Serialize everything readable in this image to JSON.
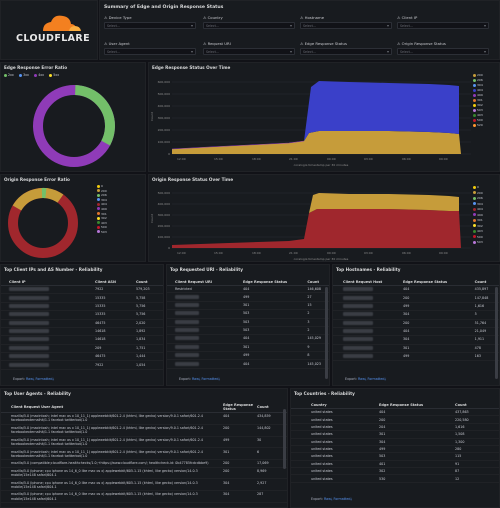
{
  "header": {
    "logo_text": "CLOUDFLARE",
    "title": "Summary of Edge and Origin Response Status",
    "filters": [
      {
        "label": "Device Type",
        "placeholder": "Select..."
      },
      {
        "label": "Country",
        "placeholder": "Select..."
      },
      {
        "label": "Hostname",
        "placeholder": "Select..."
      },
      {
        "label": "Client IP",
        "placeholder": "Select..."
      },
      {
        "label": "User Agent",
        "placeholder": "Select..."
      },
      {
        "label": "Request URI",
        "placeholder": "Select..."
      },
      {
        "label": "Edge Response Status",
        "placeholder": "Select..."
      },
      {
        "label": "Origin Response Status",
        "placeholder": "Select..."
      }
    ]
  },
  "edge_ratio": {
    "title": "Edge Response Error Ratio",
    "legend": [
      {
        "name": "2xx",
        "color": "#73bf69"
      },
      {
        "name": "3xx",
        "color": "#5794f2"
      },
      {
        "name": "4xx",
        "color": "#8f3bb8"
      },
      {
        "name": "5xx",
        "color": "#fade2a"
      }
    ]
  },
  "edge_time": {
    "title": "Edge Response Status Over Time",
    "xlabel": "coralogix.timestamp per 30 minutes",
    "ylabel": "Count",
    "yticks": [
      "0",
      "100,000",
      "200,000",
      "300,000",
      "400,000",
      "500,000",
      "600,000"
    ],
    "xticks": [
      "12:00",
      "15:00",
      "18:00",
      "21:00",
      "00:00",
      "03:00",
      "06:00",
      "09:00"
    ],
    "legend": [
      {
        "name": "200",
        "color": "#c69c3a"
      },
      {
        "name": "206",
        "color": "#73bf69"
      },
      {
        "name": "304",
        "color": "#5794f2"
      },
      {
        "name": "404",
        "color": "#3a40c9"
      },
      {
        "name": "499",
        "color": "#8f3bb8"
      },
      {
        "name": "301",
        "color": "#e0752d"
      },
      {
        "name": "302",
        "color": "#f2cc0c"
      },
      {
        "name": "503",
        "color": "#b877d9"
      },
      {
        "name": "403",
        "color": "#37872d"
      },
      {
        "name": "500",
        "color": "#c4162a"
      },
      {
        "name": "520",
        "color": "#ff9830"
      }
    ]
  },
  "origin_ratio": {
    "title": "Origin Response Error Ratio",
    "legend": [
      {
        "name": "0",
        "color": "#f2cc0c"
      },
      {
        "name": "200",
        "color": "#c69c3a"
      },
      {
        "name": "206",
        "color": "#73bf69"
      },
      {
        "name": "304",
        "color": "#5794f2"
      },
      {
        "name": "404",
        "color": "#a0272d"
      },
      {
        "name": "499",
        "color": "#8f3bb8"
      },
      {
        "name": "301",
        "color": "#e0752d"
      },
      {
        "name": "302",
        "color": "#fade2a"
      },
      {
        "name": "403",
        "color": "#37872d"
      },
      {
        "name": "500",
        "color": "#c4162a"
      },
      {
        "name": "503",
        "color": "#b877d9"
      }
    ]
  },
  "origin_time": {
    "title": "Origin Response Status Over Time",
    "xlabel": "coralogix.timestamp per 30 minutes",
    "ylabel": "Count",
    "yticks": [
      "0",
      "100,000",
      "200,000",
      "300,000",
      "400,000",
      "500,000"
    ],
    "xticks": [
      "12:00",
      "15:00",
      "18:00",
      "21:00",
      "00:00",
      "03:00",
      "06:00",
      "09:00"
    ],
    "legend": [
      {
        "name": "0",
        "color": "#f2cc0c"
      },
      {
        "name": "200",
        "color": "#c69c3a"
      },
      {
        "name": "206",
        "color": "#73bf69"
      },
      {
        "name": "304",
        "color": "#5794f2"
      },
      {
        "name": "404",
        "color": "#a0272d"
      },
      {
        "name": "499",
        "color": "#8f3bb8"
      },
      {
        "name": "301",
        "color": "#e0752d"
      },
      {
        "name": "302",
        "color": "#fade2a"
      },
      {
        "name": "403",
        "color": "#37872d"
      },
      {
        "name": "500",
        "color": "#c4162a"
      },
      {
        "name": "503",
        "color": "#b877d9"
      }
    ]
  },
  "top_client": {
    "title": "Top Client IPs and AS Number - Reliability",
    "headers": [
      "Client IP",
      "Client ASN",
      "Count"
    ],
    "rows": [
      [
        "7922",
        "579,203"
      ],
      [
        "15335",
        "5,758"
      ],
      [
        "15335",
        "5,756"
      ],
      [
        "15335",
        "5,756"
      ],
      [
        "46475",
        "2,020"
      ],
      [
        "14618",
        "1,892"
      ],
      [
        "14618",
        "1,834"
      ],
      [
        "209",
        "1,751"
      ],
      [
        "46475",
        "1,444"
      ],
      [
        "7922",
        "1,054"
      ]
    ],
    "export": "Export:",
    "raw": "Raw",
    "formatted": "Formatted"
  },
  "top_uri": {
    "title": "Top Requested URI - Reliability",
    "headers": [
      "Client Request URI",
      "Edge Response Status",
      "Count"
    ],
    "rows": [
      [
        "Restricted",
        "404",
        "146,608"
      ],
      [
        "",
        "499",
        "27"
      ],
      [
        "",
        "301",
        "15"
      ],
      [
        "",
        "503",
        "2"
      ],
      [
        "",
        "503",
        "3"
      ],
      [
        "",
        "503",
        "2"
      ],
      [
        "",
        "404",
        "145,029"
      ],
      [
        "",
        "301",
        "9"
      ],
      [
        "",
        "499",
        "8"
      ],
      [
        "",
        "404",
        "145,023"
      ]
    ],
    "export": "Export:",
    "raw": "Raw",
    "formatted": "Formatted"
  },
  "top_host": {
    "title": "Top Hostnames - Reliability",
    "headers": [
      "Client Request Host",
      "Edge Response Status",
      "Count"
    ],
    "rows": [
      [
        "",
        "404",
        "435,897"
      ],
      [
        "",
        "200",
        "147,848"
      ],
      [
        "",
        "499",
        "1,616"
      ],
      [
        "",
        "304",
        "5"
      ],
      [
        "",
        "200",
        "51,764"
      ],
      [
        "",
        "404",
        "21,049"
      ],
      [
        "",
        "304",
        "1,911"
      ],
      [
        "",
        "301",
        "478"
      ],
      [
        "",
        "499",
        "163"
      ]
    ],
    "export": "Export:",
    "raw": "Raw",
    "formatted": "Formatted"
  },
  "top_ua": {
    "title": "Top User Agents - Reliability",
    "headers": [
      "Client Request User Agent",
      "Edge Response Status",
      "Count"
    ],
    "rows": [
      [
        "mozilla/5.0 (macintosh; intel mac os x 10_11_1) applewebkit/601.2.4 (khtml, like gecko) version/9.0.1 safari/601.2.4 facebookexternalhit/1.1 facebot twitterbot/1.0",
        "404",
        "434,859"
      ],
      [
        "mozilla/5.0 (macintosh; intel mac os x 10_11_1) applewebkit/601.2.4 (khtml, like gecko) version/9.0.1 safari/601.2.4 facebookexternalhit/1.1 facebot twitterbot/1.0",
        "200",
        "144,802"
      ],
      [
        "mozilla/5.0 (macintosh; intel mac os x 10_11_1) applewebkit/601.2.4 (khtml, like gecko) version/9.0.1 safari/601.2.4 facebookexternalhit/1.1 facebot twitterbot/1.0",
        "499",
        "30"
      ],
      [
        "mozilla/5.0 (macintosh; intel mac os x 10_11_1) applewebkit/601.2.4 (khtml, like gecko) version/9.0.1 safari/601.2.4 facebookexternalhit/1.1 facebot twitterbot/1.0",
        "301",
        "6"
      ],
      [
        "mozilla/5.0 (compatible;cloudflare-healthchecks/1.0;+https://www.cloudflare.com/; healthcheck-id: 0b47785fcdcdbbe9)",
        "200",
        "17,069"
      ],
      [
        "mozilla/5.0 (iphone; cpu iphone os 14_6_0 like mac os x) applewebkit/605.1.15 (khtml, like gecko) version/14.0.3 mobile/15e148 safari/604.1",
        "200",
        "8,969"
      ],
      [
        "mozilla/5.0 (iphone; cpu iphone os 14_6_0 like mac os x) applewebkit/605.1.15 (khtml, like gecko) version/14.0.3 mobile/15e148 safari/604.1",
        "304",
        "2,927"
      ],
      [
        "mozilla/5.0 (iphone; cpu iphone os 14_6_0 like mac os x) applewebkit/605.1.15 (khtml, like gecko) version/14.0.3 mobile/15e148 safari/604.1",
        "304",
        "287"
      ]
    ]
  },
  "top_country": {
    "title": "Top Countries - Reliability",
    "headers": [
      "Country",
      "Edge Response Status",
      "Count"
    ],
    "rows": [
      [
        "united states",
        "404",
        "437,863"
      ],
      [
        "united states",
        "200",
        "220,580"
      ],
      [
        "united states",
        "204",
        "1,616"
      ],
      [
        "united states",
        "301",
        "1,508"
      ],
      [
        "united states",
        "304",
        "1,300"
      ],
      [
        "united states",
        "499",
        "280"
      ],
      [
        "united states",
        "503",
        "115"
      ],
      [
        "united states",
        "401",
        "91"
      ],
      [
        "united states",
        "302",
        "87"
      ],
      [
        "united states",
        "530",
        "12"
      ]
    ],
    "export": "Export:",
    "raw": "Raw",
    "formatted": "Formatted"
  }
}
